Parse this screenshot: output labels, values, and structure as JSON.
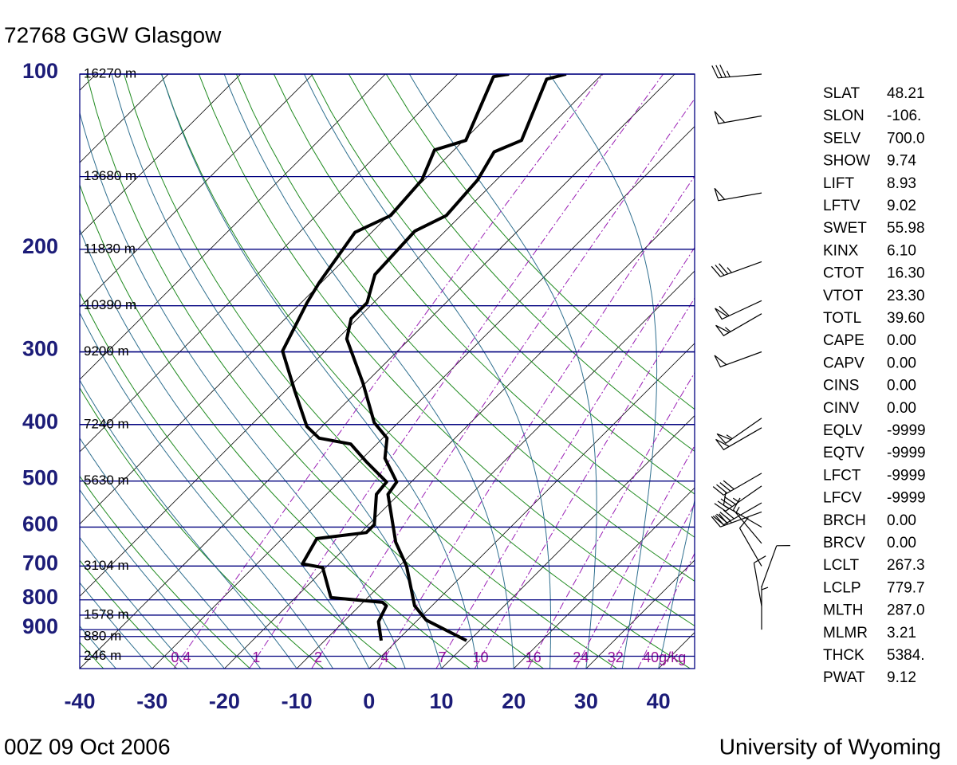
{
  "chart_data": {
    "type": "skewt",
    "title": "72768 GGW Glasgow",
    "date": "00Z 09 Oct 2006",
    "source": "University of Wyoming",
    "ylog": true,
    "ylim": [
      1050,
      100
    ],
    "yticks": [
      100,
      200,
      300,
      400,
      500,
      600,
      700,
      800,
      900
    ],
    "xlim": [
      -40,
      45
    ],
    "xticks": [
      -40,
      -30,
      -20,
      -10,
      0,
      10,
      20,
      30,
      40
    ],
    "height_labels": [
      {
        "pressure": 100,
        "label": "16270 m"
      },
      {
        "pressure": 150,
        "label": "13680 m"
      },
      {
        "pressure": 200,
        "label": "11830 m"
      },
      {
        "pressure": 250,
        "label": "10390 m"
      },
      {
        "pressure": 300,
        "label": "9200 m"
      },
      {
        "pressure": 400,
        "label": "7240 m"
      },
      {
        "pressure": 500,
        "label": "5630 m"
      },
      {
        "pressure": 700,
        "label": "3104 m"
      },
      {
        "pressure": 850,
        "label": "1578 m"
      },
      {
        "pressure": 925,
        "label": "880 m"
      },
      {
        "pressure": 1000,
        "label": "246 m"
      }
    ],
    "mixing_ratios": [
      0.4,
      1,
      2,
      4,
      7,
      10,
      16,
      24,
      32,
      {
        "value": 40,
        "label": "40g/kg"
      }
    ],
    "series": [
      {
        "color": "#000000",
        "pressure": [
          940,
          867,
          819,
          700,
          637,
          527,
          502,
          457,
          422,
          397,
          339,
          285,
          263,
          247,
          221,
          186,
          175,
          152,
          136,
          130,
          102,
          100
        ],
        "values": [
          9.6,
          1.2,
          -2.4,
          -9,
          -13.8,
          -21.5,
          -22,
          -26.9,
          -29.4,
          -33.3,
          -40.4,
          -48.7,
          -50.9,
          -50.9,
          -53.7,
          -54.2,
          -52,
          -52.6,
          -54.2,
          -52,
          -57,
          -55
        ]
      },
      {
        "color": "#000000",
        "pressure": [
          940,
          872,
          819,
          808,
          793,
          704,
          694,
          628,
          613,
          594,
          527,
          502,
          464,
          432,
          422,
          403,
          350,
          299,
          247,
          228,
          187,
          175,
          152,
          135,
          130,
          101,
          100
        ],
        "values": [
          -2.2,
          -5.2,
          -6.3,
          -7.3,
          -15.1,
          -20.4,
          -23.7,
          -25.2,
          -19.2,
          -19.2,
          -23.1,
          -23.4,
          -28.9,
          -33.6,
          -38.8,
          -42.1,
          -48.7,
          -55.9,
          -59.2,
          -60.3,
          -62.3,
          -59.7,
          -60.3,
          -62.7,
          -59.7,
          -64.7,
          -62.9
        ]
      }
    ],
    "winds": [
      {
        "pressure": 100,
        "direction": 265,
        "speed": 35
      },
      {
        "pressure": 118,
        "direction": 260,
        "speed": 50
      },
      {
        "pressure": 160,
        "direction": 260,
        "speed": 50
      },
      {
        "pressure": 210,
        "direction": 250,
        "speed": 35
      },
      {
        "pressure": 245,
        "direction": 245,
        "speed": 60
      },
      {
        "pressure": 258,
        "direction": 240,
        "speed": 55
      },
      {
        "pressure": 300,
        "direction": 250,
        "speed": 50
      },
      {
        "pressure": 390,
        "direction": 235,
        "speed": 55
      },
      {
        "pressure": 405,
        "direction": 240,
        "speed": 50
      },
      {
        "pressure": 485,
        "direction": 240,
        "speed": 40
      },
      {
        "pressure": 510,
        "direction": 235,
        "speed": 45
      },
      {
        "pressure": 545,
        "direction": 240,
        "speed": 40
      },
      {
        "pressure": 565,
        "direction": 250,
        "speed": 35
      },
      {
        "pressure": 600,
        "direction": 300,
        "speed": 10
      },
      {
        "pressure": 640,
        "direction": 320,
        "speed": 15
      },
      {
        "pressure": 700,
        "direction": 330,
        "speed": 10
      },
      {
        "pressure": 760,
        "direction": 20,
        "speed": 10
      },
      {
        "pressure": 820,
        "direction": 350,
        "speed": 10
      },
      {
        "pressure": 900,
        "direction": 360,
        "speed": 5
      }
    ],
    "indices": [
      {
        "label": "SLAT",
        "value": "48.21"
      },
      {
        "label": "SLON",
        "value": "-106."
      },
      {
        "label": "SELV",
        "value": "700.0"
      },
      {
        "label": "SHOW",
        "value": "9.74"
      },
      {
        "label": "LIFT",
        "value": "8.93"
      },
      {
        "label": "LFTV",
        "value": "9.02"
      },
      {
        "label": "SWET",
        "value": "55.98"
      },
      {
        "label": "KINX",
        "value": "6.10"
      },
      {
        "label": "CTOT",
        "value": "16.30"
      },
      {
        "label": "VTOT",
        "value": "23.30"
      },
      {
        "label": "TOTL",
        "value": "39.60"
      },
      {
        "label": "CAPE",
        "value": "0.00"
      },
      {
        "label": "CAPV",
        "value": "0.00"
      },
      {
        "label": "CINS",
        "value": "0.00"
      },
      {
        "label": "CINV",
        "value": "0.00"
      },
      {
        "label": "EQLV",
        "value": "-9999"
      },
      {
        "label": "EQTV",
        "value": "-9999"
      },
      {
        "label": "LFCT",
        "value": "-9999"
      },
      {
        "label": "LFCV",
        "value": "-9999"
      },
      {
        "label": "BRCH",
        "value": "0.00"
      },
      {
        "label": "BRCV",
        "value": "0.00"
      },
      {
        "label": "LCLT",
        "value": "267.3"
      },
      {
        "label": "LCLP",
        "value": "779.7"
      },
      {
        "label": "MLTH",
        "value": "287.0"
      },
      {
        "label": "MLMR",
        "value": "3.21"
      },
      {
        "label": "THCK",
        "value": "5384."
      },
      {
        "label": "PWAT",
        "value": "9.12"
      }
    ]
  }
}
